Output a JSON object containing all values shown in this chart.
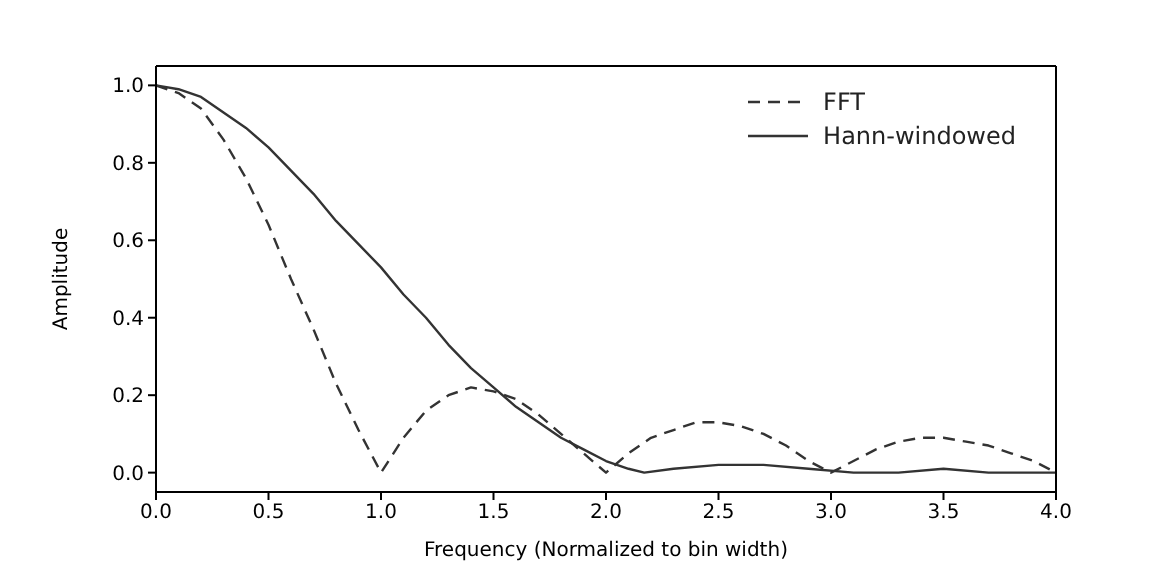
{
  "chart_data": {
    "type": "line",
    "xlabel": "Frequency (Normalized to bin width)",
    "ylabel": "Amplitude",
    "xlim": [
      0,
      4
    ],
    "ylim": [
      -0.05,
      1.05
    ],
    "xticks": [
      {
        "value": 0,
        "label": "0.0"
      },
      {
        "value": 0.5,
        "label": "0.5"
      },
      {
        "value": 1,
        "label": "1.0"
      },
      {
        "value": 1.5,
        "label": "1.5"
      },
      {
        "value": 2,
        "label": "2.0"
      },
      {
        "value": 2.5,
        "label": "2.5"
      },
      {
        "value": 3,
        "label": "3.0"
      },
      {
        "value": 3.5,
        "label": "3.5"
      },
      {
        "value": 4,
        "label": "4.0"
      }
    ],
    "yticks": [
      {
        "value": 0,
        "label": "0.0"
      },
      {
        "value": 0.2,
        "label": "0.2"
      },
      {
        "value": 0.4,
        "label": "0.4"
      },
      {
        "value": 0.6,
        "label": "0.6"
      },
      {
        "value": 0.8,
        "label": "0.8"
      },
      {
        "value": 1,
        "label": "1.0"
      }
    ],
    "grid": false,
    "legend": "top right",
    "marker": "none",
    "series": [
      {
        "name": "FFT",
        "color": "#333333",
        "line_style": "dashed",
        "x": [
          0,
          0.1,
          0.2,
          0.3,
          0.4,
          0.5,
          0.6,
          0.7,
          0.8,
          0.9,
          1.0,
          1.1,
          1.2,
          1.3,
          1.4,
          1.5,
          1.6,
          1.7,
          1.8,
          1.9,
          2.0,
          2.1,
          2.2,
          2.3,
          2.4,
          2.5,
          2.6,
          2.7,
          2.8,
          2.9,
          3.0,
          3.1,
          3.2,
          3.3,
          3.4,
          3.5,
          3.6,
          3.7,
          3.8,
          3.9,
          4.0
        ],
        "values": [
          1.0,
          0.98,
          0.94,
          0.86,
          0.76,
          0.64,
          0.5,
          0.37,
          0.23,
          0.11,
          0.0,
          0.09,
          0.16,
          0.2,
          0.22,
          0.21,
          0.19,
          0.15,
          0.1,
          0.05,
          0.0,
          0.05,
          0.09,
          0.11,
          0.13,
          0.13,
          0.12,
          0.1,
          0.07,
          0.03,
          0.0,
          0.03,
          0.06,
          0.08,
          0.09,
          0.09,
          0.08,
          0.07,
          0.05,
          0.03,
          0.0
        ]
      },
      {
        "name": "Hann-windowed",
        "color": "#333333",
        "line_style": "solid",
        "x": [
          0,
          0.1,
          0.2,
          0.3,
          0.4,
          0.5,
          0.6,
          0.7,
          0.8,
          0.9,
          1.0,
          1.1,
          1.2,
          1.3,
          1.4,
          1.5,
          1.6,
          1.7,
          1.8,
          1.9,
          2.0,
          2.1,
          2.17,
          2.3,
          2.5,
          2.7,
          2.9,
          3.1,
          3.3,
          3.5,
          3.7,
          3.9,
          4.0
        ],
        "values": [
          1.0,
          0.99,
          0.97,
          0.93,
          0.89,
          0.84,
          0.78,
          0.72,
          0.65,
          0.59,
          0.53,
          0.46,
          0.4,
          0.33,
          0.27,
          0.22,
          0.17,
          0.13,
          0.09,
          0.06,
          0.03,
          0.01,
          0.0,
          0.01,
          0.02,
          0.02,
          0.01,
          0.0,
          0.0,
          0.01,
          0.0,
          0.0,
          0.0
        ]
      }
    ]
  }
}
